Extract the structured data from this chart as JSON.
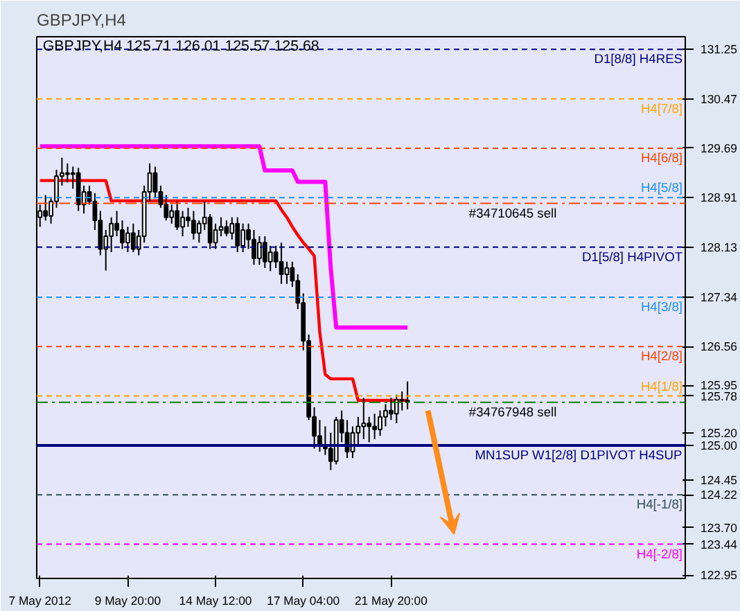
{
  "chart_data": {
    "type": "candlestick",
    "title": "GBPJPY,H4",
    "subtitle": "GBPJPY,H4  125.71 126.01 125.57 125.68",
    "categories": [
      "7 May 2012",
      null,
      null,
      null,
      null,
      null,
      null,
      null,
      null,
      null,
      null,
      null,
      null,
      null,
      null,
      null,
      "9 May 20:00",
      null,
      null,
      null,
      null,
      null,
      null,
      null,
      null,
      null,
      null,
      null,
      null,
      null,
      null,
      null,
      "14 May 12:00",
      null,
      null,
      null,
      null,
      null,
      null,
      null,
      null,
      null,
      null,
      null,
      null,
      null,
      null,
      null,
      "17 May 04:00",
      null,
      null,
      null,
      null,
      null,
      null,
      null,
      null,
      null,
      null,
      null,
      null,
      null,
      null,
      null,
      "21 May 20:00",
      null,
      null,
      null
    ],
    "ohlc": [
      [
        128.6,
        128.8,
        128.45,
        128.7
      ],
      [
        128.7,
        128.95,
        128.55,
        128.62
      ],
      [
        128.62,
        128.9,
        128.5,
        128.85
      ],
      [
        128.85,
        129.35,
        128.75,
        129.25
      ],
      [
        129.25,
        129.54,
        129.1,
        129.3
      ],
      [
        129.3,
        129.45,
        129.15,
        129.28
      ],
      [
        129.28,
        129.4,
        129.05,
        129.3
      ],
      [
        129.3,
        129.38,
        128.7,
        128.8
      ],
      [
        128.8,
        129.1,
        128.66,
        129.0
      ],
      [
        129.0,
        129.1,
        128.8,
        128.85
      ],
      [
        128.85,
        128.98,
        128.4,
        128.55
      ],
      [
        128.55,
        128.7,
        128.0,
        128.1
      ],
      [
        128.1,
        128.4,
        127.76,
        128.3
      ],
      [
        128.3,
        128.6,
        128.05,
        128.5
      ],
      [
        128.5,
        128.7,
        128.3,
        128.4
      ],
      [
        128.4,
        128.55,
        128.1,
        128.2
      ],
      [
        128.2,
        128.45,
        128.05,
        128.35
      ],
      [
        128.35,
        128.5,
        128.05,
        128.1
      ],
      [
        128.1,
        128.4,
        128.0,
        128.3
      ],
      [
        128.3,
        129.1,
        128.2,
        129.0
      ],
      [
        129.0,
        129.45,
        128.85,
        129.3
      ],
      [
        129.3,
        129.4,
        128.9,
        129.0
      ],
      [
        129.0,
        129.1,
        128.75,
        128.8
      ],
      [
        128.8,
        128.95,
        128.55,
        128.6
      ],
      [
        128.6,
        128.8,
        128.5,
        128.7
      ],
      [
        128.7,
        128.85,
        128.4,
        128.45
      ],
      [
        128.45,
        128.7,
        128.3,
        128.6
      ],
      [
        128.6,
        128.75,
        128.45,
        128.55
      ],
      [
        128.55,
        128.7,
        128.25,
        128.35
      ],
      [
        128.35,
        128.55,
        128.2,
        128.5
      ],
      [
        128.5,
        128.85,
        128.4,
        128.6
      ],
      [
        128.6,
        128.65,
        128.1,
        128.2
      ],
      [
        128.2,
        128.5,
        128.1,
        128.4
      ],
      [
        128.4,
        128.6,
        128.3,
        128.45
      ],
      [
        128.45,
        128.55,
        128.3,
        128.35
      ],
      [
        128.35,
        128.6,
        128.25,
        128.5
      ],
      [
        128.5,
        128.6,
        128.05,
        128.15
      ],
      [
        128.15,
        128.5,
        128.05,
        128.4
      ],
      [
        128.4,
        128.5,
        128.1,
        128.25
      ],
      [
        128.25,
        128.4,
        127.85,
        127.95
      ],
      [
        127.95,
        128.3,
        127.85,
        128.2
      ],
      [
        128.2,
        128.3,
        127.8,
        127.9
      ],
      [
        127.9,
        128.15,
        127.75,
        128.05
      ],
      [
        128.05,
        128.15,
        127.8,
        127.9
      ],
      [
        127.9,
        128.2,
        127.55,
        127.7
      ],
      [
        127.7,
        127.9,
        127.55,
        127.8
      ],
      [
        127.8,
        127.9,
        127.5,
        127.6
      ],
      [
        127.6,
        127.7,
        127.15,
        127.25
      ],
      [
        127.25,
        127.4,
        126.5,
        126.65
      ],
      [
        126.65,
        126.75,
        125.4,
        125.45
      ],
      [
        125.45,
        125.6,
        124.95,
        125.15
      ],
      [
        125.15,
        125.4,
        124.9,
        125.0
      ],
      [
        125.0,
        125.3,
        124.85,
        124.95
      ],
      [
        124.95,
        125.2,
        124.61,
        124.75
      ],
      [
        124.75,
        125.45,
        124.7,
        125.4
      ],
      [
        125.4,
        125.55,
        125.05,
        125.2
      ],
      [
        125.2,
        125.4,
        124.8,
        124.9
      ],
      [
        124.9,
        125.3,
        124.8,
        125.2
      ],
      [
        125.2,
        125.45,
        125.0,
        125.3
      ],
      [
        125.3,
        125.75,
        125.1,
        125.35
      ],
      [
        125.35,
        125.45,
        125.05,
        125.3
      ],
      [
        125.3,
        125.5,
        125.1,
        125.25
      ],
      [
        125.25,
        125.55,
        125.15,
        125.45
      ],
      [
        125.45,
        125.65,
        125.3,
        125.55
      ],
      [
        125.55,
        125.75,
        125.4,
        125.5
      ],
      [
        125.5,
        125.8,
        125.35,
        125.72
      ],
      [
        125.72,
        125.85,
        125.55,
        125.71
      ],
      [
        125.71,
        126.01,
        125.57,
        125.68
      ]
    ],
    "series": [
      {
        "type": "line",
        "color": "#ff0000",
        "values": [
          129.18,
          129.18,
          129.18,
          129.18,
          129.18,
          129.18,
          129.18,
          129.18,
          129.18,
          129.18,
          129.18,
          129.18,
          129.18,
          128.86,
          128.86,
          128.86,
          128.86,
          128.86,
          128.86,
          128.86,
          128.86,
          128.86,
          128.86,
          128.86,
          128.86,
          128.86,
          128.86,
          128.86,
          128.86,
          128.86,
          128.86,
          128.86,
          128.86,
          128.86,
          128.86,
          128.86,
          128.86,
          128.86,
          128.86,
          128.86,
          128.86,
          128.86,
          128.86,
          128.86,
          128.72,
          128.6,
          128.45,
          128.32,
          128.2,
          128.1,
          127.99,
          126.79,
          126.12,
          126.05,
          126.05,
          126.05,
          126.05,
          126.05,
          125.71,
          125.71,
          125.71,
          125.71,
          125.71,
          125.71,
          125.71,
          125.71,
          125.71,
          125.71
        ]
      },
      {
        "type": "line",
        "color": "#ff00ff",
        "values": [
          129.72,
          129.72,
          129.72,
          129.72,
          129.72,
          129.72,
          129.72,
          129.72,
          129.72,
          129.72,
          129.72,
          129.72,
          129.72,
          129.72,
          129.72,
          129.72,
          129.72,
          129.72,
          129.72,
          129.72,
          129.72,
          129.72,
          129.72,
          129.72,
          129.72,
          129.72,
          129.72,
          129.72,
          129.72,
          129.72,
          129.72,
          129.72,
          129.72,
          129.72,
          129.72,
          129.72,
          129.72,
          129.72,
          129.72,
          129.72,
          129.72,
          129.34,
          129.34,
          129.34,
          129.34,
          129.34,
          129.34,
          129.16,
          129.16,
          129.16,
          129.16,
          129.16,
          129.16,
          127.8,
          126.86,
          126.86,
          126.86,
          126.86,
          126.86,
          126.86,
          126.86,
          126.86,
          126.86,
          126.86,
          126.86,
          126.86,
          126.86,
          126.86
        ]
      }
    ],
    "ylim": [
      122.9,
      131.45
    ],
    "yticks": [
      {
        "value": 122.95,
        "label": "122.95"
      },
      {
        "value": 123.44,
        "label": "123.44"
      },
      {
        "value": 123.7,
        "label": "123.70"
      },
      {
        "value": 124.22,
        "label": "124.22"
      },
      {
        "value": 124.45,
        "label": "124.45"
      },
      {
        "value": 125.0,
        "label": "125.00"
      },
      {
        "value": 125.2,
        "label": "125.20"
      },
      {
        "value": 125.78,
        "label": "125.78"
      },
      {
        "value": 125.95,
        "label": "125.95"
      },
      {
        "value": 126.56,
        "label": "126.56"
      },
      {
        "value": 127.34,
        "label": "127.34"
      },
      {
        "value": 128.13,
        "label": "128.13"
      },
      {
        "value": 128.91,
        "label": "128.91"
      },
      {
        "value": 129.69,
        "label": "129.69"
      },
      {
        "value": 130.47,
        "label": "130.47"
      },
      {
        "value": 131.25,
        "label": "131.25"
      }
    ],
    "ref_lines": [
      {
        "axis": "y",
        "value": 131.25,
        "label": "D1[8/8] H4RES",
        "color": "#000080",
        "line_style": "dashed"
      },
      {
        "axis": "y",
        "value": 130.47,
        "label": "H4[7/8]",
        "color": "#ffa500",
        "line_style": "dashed"
      },
      {
        "axis": "y",
        "value": 129.69,
        "label": "H4[6/8]",
        "color": "#ff4500",
        "line_style": "dashed"
      },
      {
        "axis": "y",
        "value": 128.91,
        "label": "H4[5/8]",
        "color": "#1e90ff",
        "line_style": "dashed"
      },
      {
        "axis": "y",
        "value": 128.82,
        "label": "#34710645 sell",
        "color": "#ff4500",
        "line_style": "dashdot"
      },
      {
        "axis": "y",
        "value": 128.13,
        "label": "D1[5/8] H4PIVOT",
        "color": "#000080",
        "line_style": "dashed"
      },
      {
        "axis": "y",
        "value": 127.34,
        "label": "H4[3/8]",
        "color": "#1e90ff",
        "line_style": "dashed"
      },
      {
        "axis": "y",
        "value": 126.56,
        "label": "H4[2/8]",
        "color": "#ff4500",
        "line_style": "dashed"
      },
      {
        "axis": "y",
        "value": 125.78,
        "label": "H4[1/8]",
        "color": "#ffa500",
        "line_style": "dashed"
      },
      {
        "axis": "y",
        "value": 125.68,
        "label": "#34767948 sell",
        "color": "#008000",
        "line_style": "dashdot"
      },
      {
        "axis": "y",
        "value": 125.0,
        "label": "MN1SUP W1[2/8] D1PIVOT H4SUP",
        "color": "#000080",
        "line_style": "solid"
      },
      {
        "axis": "y",
        "value": 124.22,
        "label": "H4[-1/8]",
        "color": "#2f4f4f",
        "line_style": "dashed"
      },
      {
        "axis": "y",
        "value": 123.44,
        "label": "H4[-2/8]",
        "color": "#ff00ff",
        "line_style": "dashed"
      }
    ]
  }
}
